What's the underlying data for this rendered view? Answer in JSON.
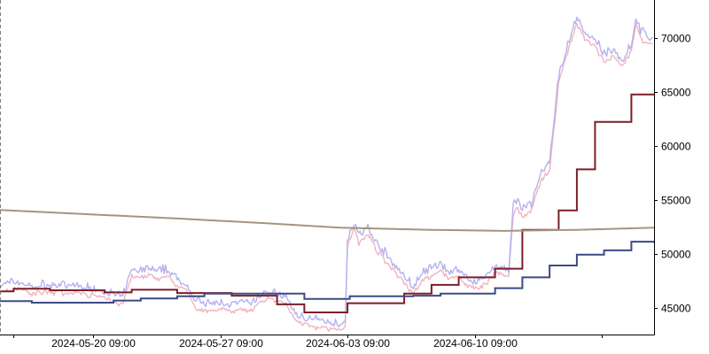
{
  "chart_data": {
    "type": "line",
    "title": "",
    "xlabel": "",
    "ylabel": "",
    "x_range": [
      "2024-05-15 06:00",
      "2024-06-20 06:00"
    ],
    "ylim": [
      42500,
      73500
    ],
    "y_axis_position": "right",
    "grid": false,
    "legend": "none",
    "x_ticks": [
      {
        "at": "2024-05-16 00:00",
        "label": ""
      },
      {
        "at": "2024-05-20 09:00",
        "label": "2024-05-20 09:00"
      },
      {
        "at": "2024-05-27 09:00",
        "label": "2024-05-27 09:00"
      },
      {
        "at": "2024-06-03 09:00",
        "label": "2024-06-03 09:00"
      },
      {
        "at": "2024-06-10 09:00",
        "label": "2024-06-10 09:00"
      },
      {
        "at": "2024-06-17 09:00",
        "label": ""
      }
    ],
    "y_ticks": [
      {
        "value": 45000,
        "label": "45000"
      },
      {
        "value": 50000,
        "label": "50000"
      },
      {
        "value": 55000,
        "label": "55000"
      },
      {
        "value": 60000,
        "label": "60000"
      },
      {
        "value": 65000,
        "label": "65000"
      },
      {
        "value": 70000,
        "label": "70000"
      }
    ],
    "series": [
      {
        "style": "band",
        "color_high": "#b3b3f0",
        "color_low": "#f2b3be",
        "points": [
          [
            "2024-05-15 06:00",
            46600
          ],
          [
            "2024-05-15 12:00",
            46800
          ],
          [
            "2024-05-16 00:00",
            47000
          ],
          [
            "2024-05-16 12:00",
            46900
          ],
          [
            "2024-05-17 00:00",
            46500
          ],
          [
            "2024-05-17 12:00",
            46700
          ],
          [
            "2024-05-18 00:00",
            46600
          ],
          [
            "2024-05-18 12:00",
            46700
          ],
          [
            "2024-05-19 00:00",
            46500
          ],
          [
            "2024-05-19 12:00",
            46700
          ],
          [
            "2024-05-20 00:00",
            46400
          ],
          [
            "2024-05-20 12:00",
            46300
          ],
          [
            "2024-05-21 00:00",
            46100
          ],
          [
            "2024-05-21 12:00",
            45800
          ],
          [
            "2024-05-22 00:00",
            45600
          ],
          [
            "2024-05-22 12:00",
            48200
          ],
          [
            "2024-05-23 00:00",
            48000
          ],
          [
            "2024-05-23 12:00",
            48300
          ],
          [
            "2024-05-24 00:00",
            47900
          ],
          [
            "2024-05-24 12:00",
            48100
          ],
          [
            "2024-05-25 00:00",
            47200
          ],
          [
            "2024-05-25 12:00",
            46800
          ],
          [
            "2024-05-26 00:00",
            45200
          ],
          [
            "2024-05-26 12:00",
            45000
          ],
          [
            "2024-05-27 00:00",
            44900
          ],
          [
            "2024-05-27 12:00",
            45100
          ],
          [
            "2024-05-28 00:00",
            44800
          ],
          [
            "2024-05-28 12:00",
            45100
          ],
          [
            "2024-05-29 00:00",
            44900
          ],
          [
            "2024-05-29 12:00",
            45600
          ],
          [
            "2024-05-30 00:00",
            46100
          ],
          [
            "2024-05-30 12:00",
            45800
          ],
          [
            "2024-05-31 00:00",
            45600
          ],
          [
            "2024-05-31 12:00",
            44000
          ],
          [
            "2024-06-01 00:00",
            43700
          ],
          [
            "2024-06-01 12:00",
            43500
          ],
          [
            "2024-06-02 00:00",
            43400
          ],
          [
            "2024-06-02 12:00",
            43200
          ],
          [
            "2024-06-03 00:00",
            43100
          ],
          [
            "2024-06-03 06:00",
            43400
          ],
          [
            "2024-06-03 09:00",
            51000
          ],
          [
            "2024-06-03 18:00",
            52500
          ],
          [
            "2024-06-04 00:00",
            51200
          ],
          [
            "2024-06-04 12:00",
            52000
          ],
          [
            "2024-06-05 00:00",
            50500
          ],
          [
            "2024-06-05 12:00",
            49500
          ],
          [
            "2024-06-06 00:00",
            48500
          ],
          [
            "2024-06-06 12:00",
            47500
          ],
          [
            "2024-06-07 00:00",
            46500
          ],
          [
            "2024-06-07 12:00",
            47800
          ],
          [
            "2024-06-08 00:00",
            48200
          ],
          [
            "2024-06-08 12:00",
            48600
          ],
          [
            "2024-06-09 00:00",
            47900
          ],
          [
            "2024-06-09 12:00",
            48100
          ],
          [
            "2024-06-10 00:00",
            47200
          ],
          [
            "2024-06-10 12:00",
            47000
          ],
          [
            "2024-06-11 00:00",
            47500
          ],
          [
            "2024-06-11 12:00",
            48500
          ],
          [
            "2024-06-12 00:00",
            48300
          ],
          [
            "2024-06-12 06:00",
            48000
          ],
          [
            "2024-06-12 12:00",
            54000
          ],
          [
            "2024-06-12 18:00",
            54500
          ],
          [
            "2024-06-13 00:00",
            53600
          ],
          [
            "2024-06-13 12:00",
            54200
          ],
          [
            "2024-06-14 00:00",
            57000
          ],
          [
            "2024-06-14 12:00",
            58000
          ],
          [
            "2024-06-15 00:00",
            66000
          ],
          [
            "2024-06-15 12:00",
            69000
          ],
          [
            "2024-06-16 00:00",
            71500
          ],
          [
            "2024-06-16 12:00",
            70000
          ],
          [
            "2024-06-17 00:00",
            69500
          ],
          [
            "2024-06-17 12:00",
            68000
          ],
          [
            "2024-06-18 00:00",
            68500
          ],
          [
            "2024-06-18 12:00",
            67500
          ],
          [
            "2024-06-19 00:00",
            69000
          ],
          [
            "2024-06-19 06:00",
            71500
          ],
          [
            "2024-06-19 12:00",
            70200
          ],
          [
            "2024-06-20 00:00",
            69600
          ],
          [
            "2024-06-20 06:00",
            69500
          ]
        ]
      },
      {
        "style": "step",
        "color": "#7b1f28",
        "points": [
          [
            "2024-05-15 06:00",
            46500
          ],
          [
            "2024-05-16 00:00",
            46750
          ],
          [
            "2024-05-18 00:00",
            46600
          ],
          [
            "2024-05-21 00:00",
            46400
          ],
          [
            "2024-05-22 12:00",
            46650
          ],
          [
            "2024-05-25 00:00",
            46350
          ],
          [
            "2024-05-28 00:00",
            46100
          ],
          [
            "2024-05-30 12:00",
            45300
          ],
          [
            "2024-06-01 00:00",
            44550
          ],
          [
            "2024-06-03 09:00",
            45400
          ],
          [
            "2024-06-06 12:00",
            46300
          ],
          [
            "2024-06-08 00:00",
            47100
          ],
          [
            "2024-06-09 12:00",
            47800
          ],
          [
            "2024-06-11 12:00",
            48600
          ],
          [
            "2024-06-13 00:00",
            52200
          ],
          [
            "2024-06-15 00:00",
            54000
          ],
          [
            "2024-06-16 00:00",
            57800
          ],
          [
            "2024-06-17 00:00",
            62200
          ],
          [
            "2024-06-19 00:00",
            64750
          ],
          [
            "2024-06-20 06:00",
            64750
          ]
        ]
      },
      {
        "style": "step",
        "color": "#3c4a85",
        "points": [
          [
            "2024-05-15 06:00",
            45600
          ],
          [
            "2024-05-17 00:00",
            45450
          ],
          [
            "2024-05-21 12:00",
            45650
          ],
          [
            "2024-05-23 00:00",
            45850
          ],
          [
            "2024-05-25 00:00",
            46050
          ],
          [
            "2024-05-26 12:00",
            46300
          ],
          [
            "2024-06-01 00:00",
            45800
          ],
          [
            "2024-06-03 12:00",
            46050
          ],
          [
            "2024-06-07 00:00",
            46100
          ],
          [
            "2024-06-08 12:00",
            46300
          ],
          [
            "2024-06-11 12:00",
            46800
          ],
          [
            "2024-06-13 00:00",
            47800
          ],
          [
            "2024-06-14 12:00",
            48900
          ],
          [
            "2024-06-16 00:00",
            49900
          ],
          [
            "2024-06-17 12:00",
            50300
          ],
          [
            "2024-06-19 00:00",
            51100
          ],
          [
            "2024-06-20 06:00",
            51000
          ]
        ]
      },
      {
        "style": "line",
        "color": "#a39480",
        "points": [
          [
            "2024-05-15 06:00",
            54050
          ],
          [
            "2024-05-20 00:00",
            53650
          ],
          [
            "2024-05-25 00:00",
            53250
          ],
          [
            "2024-05-30 00:00",
            52800
          ],
          [
            "2024-06-03 00:00",
            52400
          ],
          [
            "2024-06-08 00:00",
            52200
          ],
          [
            "2024-06-12 00:00",
            52100
          ],
          [
            "2024-06-16 00:00",
            52200
          ],
          [
            "2024-06-20 06:00",
            52400
          ]
        ]
      }
    ]
  }
}
